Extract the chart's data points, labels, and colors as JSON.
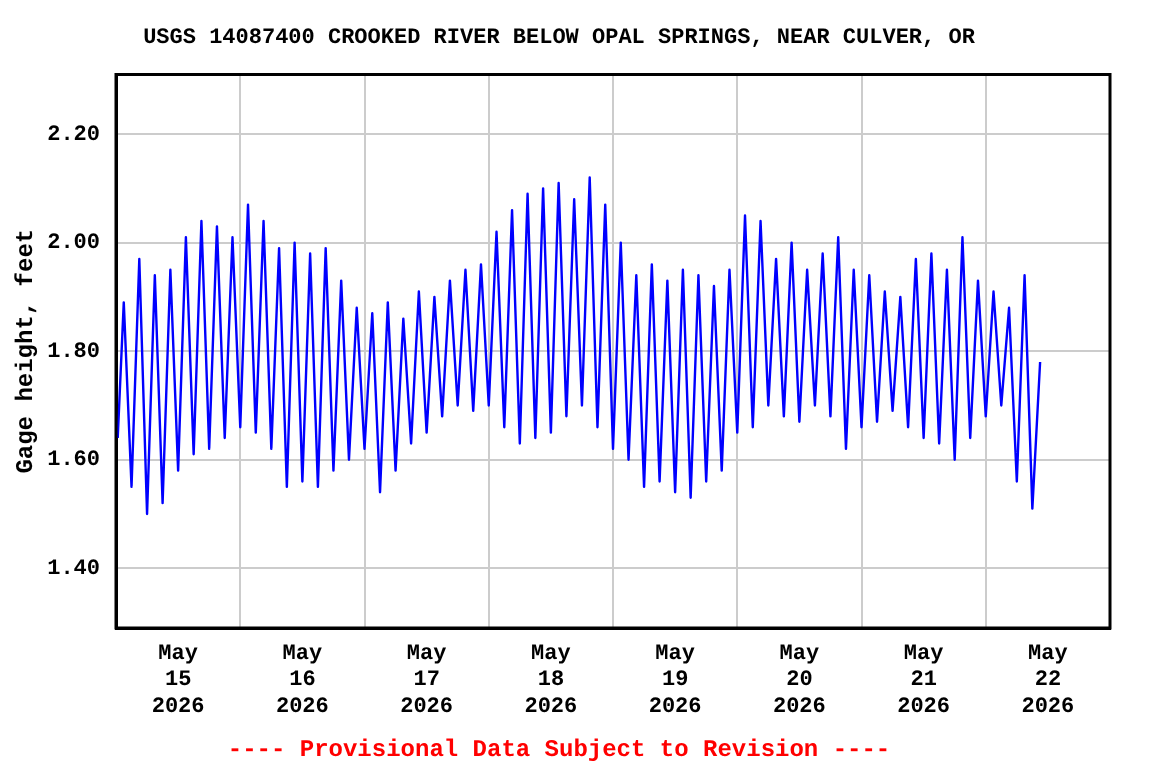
{
  "chart_data": {
    "type": "line",
    "title": "USGS 14087400 CROOKED RIVER BELOW OPAL SPRINGS, NEAR CULVER, OR",
    "ylabel": "Gage height, feet",
    "annotations": [
      "---- Provisional Data Subject to Revision ----"
    ],
    "x": [
      "2026-05-15T00:20",
      "2026-05-15T01:30",
      "2026-05-15T03:00",
      "2026-05-15T04:30",
      "2026-05-15T06:00",
      "2026-05-15T07:30",
      "2026-05-15T09:00",
      "2026-05-15T10:30",
      "2026-05-15T12:00",
      "2026-05-15T13:30",
      "2026-05-15T15:00",
      "2026-05-15T16:30",
      "2026-05-15T18:00",
      "2026-05-15T19:30",
      "2026-05-15T21:00",
      "2026-05-15T22:30",
      "2026-05-16T00:00",
      "2026-05-16T01:30",
      "2026-05-16T03:00",
      "2026-05-16T04:30",
      "2026-05-16T06:00",
      "2026-05-16T07:30",
      "2026-05-16T09:00",
      "2026-05-16T10:30",
      "2026-05-16T12:00",
      "2026-05-16T13:30",
      "2026-05-16T15:00",
      "2026-05-16T16:30",
      "2026-05-16T18:00",
      "2026-05-16T19:30",
      "2026-05-16T21:00",
      "2026-05-16T22:30",
      "2026-05-17T00:00",
      "2026-05-17T01:30",
      "2026-05-17T03:00",
      "2026-05-17T04:30",
      "2026-05-17T06:00",
      "2026-05-17T07:30",
      "2026-05-17T09:00",
      "2026-05-17T10:30",
      "2026-05-17T12:00",
      "2026-05-17T13:30",
      "2026-05-17T15:00",
      "2026-05-17T16:30",
      "2026-05-17T18:00",
      "2026-05-17T19:30",
      "2026-05-17T21:00",
      "2026-05-17T22:30",
      "2026-05-18T00:00",
      "2026-05-18T01:30",
      "2026-05-18T03:00",
      "2026-05-18T04:30",
      "2026-05-18T06:00",
      "2026-05-18T07:30",
      "2026-05-18T09:00",
      "2026-05-18T10:30",
      "2026-05-18T12:00",
      "2026-05-18T13:30",
      "2026-05-18T15:00",
      "2026-05-18T16:30",
      "2026-05-18T18:00",
      "2026-05-18T19:30",
      "2026-05-18T21:00",
      "2026-05-18T22:30",
      "2026-05-19T00:00",
      "2026-05-19T01:30",
      "2026-05-19T03:00",
      "2026-05-19T04:30",
      "2026-05-19T06:00",
      "2026-05-19T07:30",
      "2026-05-19T09:00",
      "2026-05-19T10:30",
      "2026-05-19T12:00",
      "2026-05-19T13:30",
      "2026-05-19T15:00",
      "2026-05-19T16:30",
      "2026-05-19T18:00",
      "2026-05-19T19:30",
      "2026-05-19T21:00",
      "2026-05-19T22:30",
      "2026-05-20T00:00",
      "2026-05-20T01:30",
      "2026-05-20T03:00",
      "2026-05-20T04:30",
      "2026-05-20T06:00",
      "2026-05-20T07:30",
      "2026-05-20T09:00",
      "2026-05-20T10:30",
      "2026-05-20T12:00",
      "2026-05-20T13:30",
      "2026-05-20T15:00",
      "2026-05-20T16:30",
      "2026-05-20T18:00",
      "2026-05-20T19:30",
      "2026-05-20T21:00",
      "2026-05-20T22:30",
      "2026-05-21T00:00",
      "2026-05-21T01:30",
      "2026-05-21T03:00",
      "2026-05-21T04:30",
      "2026-05-21T06:00",
      "2026-05-21T07:30",
      "2026-05-21T09:00",
      "2026-05-21T10:30",
      "2026-05-21T12:00",
      "2026-05-21T13:30",
      "2026-05-21T15:00",
      "2026-05-21T16:30",
      "2026-05-21T18:00",
      "2026-05-21T19:30",
      "2026-05-21T21:00",
      "2026-05-21T22:30",
      "2026-05-22T00:00",
      "2026-05-22T01:30",
      "2026-05-22T03:00",
      "2026-05-22T04:30",
      "2026-05-22T06:00",
      "2026-05-22T07:30",
      "2026-05-22T09:00",
      "2026-05-22T10:30"
    ],
    "series": [
      {
        "color": "#0000ff",
        "values": [
          1.64,
          1.89,
          1.55,
          1.97,
          1.5,
          1.94,
          1.52,
          1.95,
          1.58,
          2.01,
          1.61,
          2.04,
          1.62,
          2.03,
          1.64,
          2.01,
          1.66,
          2.07,
          1.65,
          2.04,
          1.62,
          1.99,
          1.55,
          2.0,
          1.56,
          1.98,
          1.55,
          1.99,
          1.58,
          1.93,
          1.6,
          1.88,
          1.62,
          1.87,
          1.54,
          1.89,
          1.58,
          1.86,
          1.63,
          1.91,
          1.65,
          1.9,
          1.68,
          1.93,
          1.7,
          1.95,
          1.69,
          1.96,
          1.7,
          2.02,
          1.66,
          2.06,
          1.63,
          2.09,
          1.64,
          2.1,
          1.65,
          2.11,
          1.68,
          2.08,
          1.7,
          2.12,
          1.66,
          2.07,
          1.62,
          2.0,
          1.6,
          1.94,
          1.55,
          1.96,
          1.56,
          1.93,
          1.54,
          1.95,
          1.53,
          1.94,
          1.56,
          1.92,
          1.58,
          1.95,
          1.65,
          2.05,
          1.66,
          2.04,
          1.7,
          1.97,
          1.68,
          2.0,
          1.67,
          1.95,
          1.7,
          1.98,
          1.68,
          2.01,
          1.62,
          1.95,
          1.66,
          1.94,
          1.67,
          1.91,
          1.69,
          1.9,
          1.66,
          1.97,
          1.64,
          1.98,
          1.63,
          1.95,
          1.6,
          2.01,
          1.64,
          1.93,
          1.68,
          1.91,
          1.7,
          1.88,
          1.56,
          1.94,
          1.51,
          1.78
        ]
      }
    ],
    "xlim": [
      "2026-05-15T00:00",
      "2026-05-23T00:00"
    ],
    "xticks": [
      {
        "value": "2026-05-15T00:00",
        "label": null
      },
      {
        "value": "2026-05-15T12:00",
        "label": "May 15 2026"
      },
      {
        "value": "2026-05-16T00:00",
        "label": null
      },
      {
        "value": "2026-05-16T12:00",
        "label": "May 16 2026"
      },
      {
        "value": "2026-05-17T00:00",
        "label": null
      },
      {
        "value": "2026-05-17T12:00",
        "label": "May 17 2026"
      },
      {
        "value": "2026-05-18T00:00",
        "label": null
      },
      {
        "value": "2026-05-18T12:00",
        "label": "May 18 2026"
      },
      {
        "value": "2026-05-19T00:00",
        "label": null
      },
      {
        "value": "2026-05-19T12:00",
        "label": "May 19 2026"
      },
      {
        "value": "2026-05-20T00:00",
        "label": null
      },
      {
        "value": "2026-05-20T12:00",
        "label": "May 20 2026"
      },
      {
        "value": "2026-05-21T00:00",
        "label": null
      },
      {
        "value": "2026-05-21T12:00",
        "label": "May 21 2026"
      },
      {
        "value": "2026-05-22T00:00",
        "label": null
      },
      {
        "value": "2026-05-22T12:00",
        "label": "May 22 2026"
      },
      {
        "value": "2026-05-23T00:00",
        "label": null
      }
    ],
    "ylim": [
      1.29,
      2.31
    ],
    "yticks": [
      {
        "value": 1.4,
        "label": "1.40"
      },
      {
        "value": 1.6,
        "label": "1.60"
      },
      {
        "value": 1.8,
        "label": "1.80"
      },
      {
        "value": 2.0,
        "label": "2.00"
      },
      {
        "value": 2.2,
        "label": "2.20"
      }
    ],
    "grid": true,
    "legend": false,
    "marker": "none",
    "line_style": "solid"
  }
}
